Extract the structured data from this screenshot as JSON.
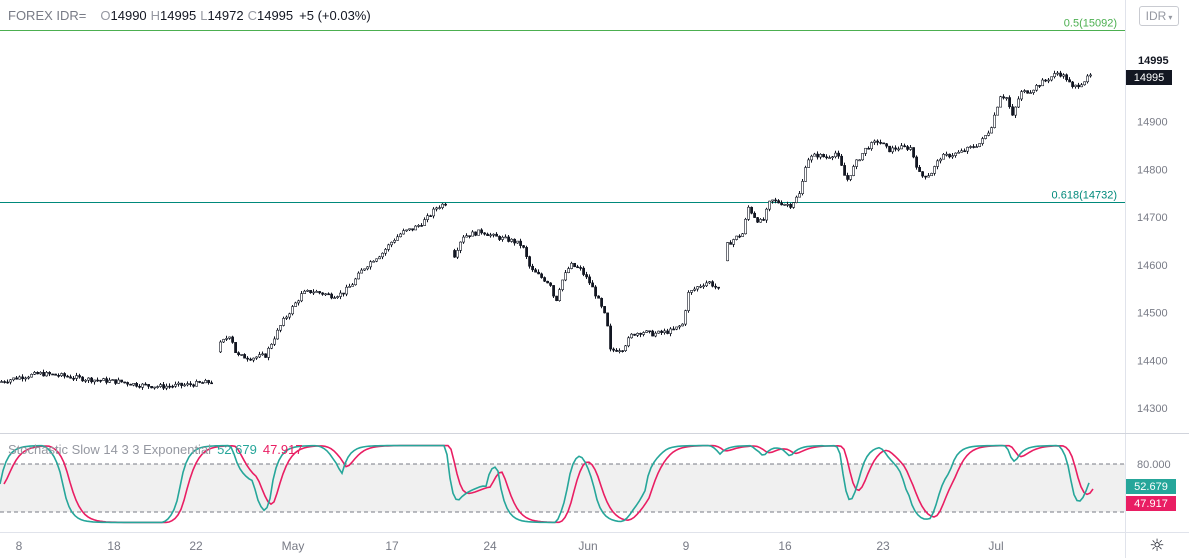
{
  "header": {
    "symbol": "FOREX IDR=",
    "open_label": "O",
    "open": "14990",
    "high_label": "H",
    "high": "14995",
    "low_label": "L",
    "low": "14972",
    "close_label": "C",
    "close": "14995",
    "change": "+5 (+0.03%)"
  },
  "currency_button": {
    "label": "IDR",
    "icon": "chevron-down-icon"
  },
  "price_badges": {
    "last_high": "14995",
    "last": "14995"
  },
  "fib_levels": [
    {
      "label": "0.5(15092)",
      "value": 15092,
      "color": "#4caf50"
    },
    {
      "label": "0.618(14732)",
      "value": 14732,
      "color": "#00897b"
    }
  ],
  "stochastic": {
    "title": "Stochastic Slow 14 3 3 Exponential",
    "k_value": "52.679",
    "d_value": "47.917",
    "k_color": "#26a69a",
    "d_color": "#e91e63",
    "upper_band": 80,
    "lower_band": 20,
    "upper_label": "80.000"
  },
  "settings_icon": "gear-icon",
  "chart_data": {
    "type": "candlestick",
    "y_axis_ticks": [
      14300,
      14400,
      14500,
      14600,
      14700,
      14800,
      14900
    ],
    "x_axis_labels": [
      "8",
      "18",
      "22",
      "May",
      "17",
      "24",
      "Jun",
      "9",
      "16",
      "23",
      "Jul"
    ],
    "waypoints": [
      [
        0,
        14355
      ],
      [
        20,
        14365
      ],
      [
        40,
        14372
      ],
      [
        60,
        14368
      ],
      [
        80,
        14362
      ],
      [
        100,
        14358
      ],
      [
        120,
        14355
      ],
      [
        140,
        14348
      ],
      [
        160,
        14345
      ],
      [
        185,
        14348
      ],
      [
        212,
        14355
      ],
      [
        218,
        14430
      ],
      [
        230,
        14455
      ],
      [
        236,
        14410
      ],
      [
        250,
        14405
      ],
      [
        265,
        14410
      ],
      [
        272,
        14440
      ],
      [
        282,
        14480
      ],
      [
        292,
        14510
      ],
      [
        302,
        14540
      ],
      [
        312,
        14545
      ],
      [
        322,
        14540
      ],
      [
        332,
        14535
      ],
      [
        342,
        14540
      ],
      [
        352,
        14560
      ],
      [
        362,
        14590
      ],
      [
        372,
        14610
      ],
      [
        382,
        14625
      ],
      [
        392,
        14650
      ],
      [
        402,
        14668
      ],
      [
        412,
        14675
      ],
      [
        420,
        14685
      ],
      [
        428,
        14700
      ],
      [
        436,
        14720
      ],
      [
        446,
        14730
      ],
      [
        452,
        14610
      ],
      [
        462,
        14660
      ],
      [
        472,
        14665
      ],
      [
        482,
        14670
      ],
      [
        492,
        14660
      ],
      [
        502,
        14655
      ],
      [
        512,
        14650
      ],
      [
        522,
        14640
      ],
      [
        530,
        14590
      ],
      [
        540,
        14575
      ],
      [
        550,
        14560
      ],
      [
        555,
        14520
      ],
      [
        560,
        14560
      ],
      [
        570,
        14600
      ],
      [
        580,
        14590
      ],
      [
        590,
        14560
      ],
      [
        597,
        14530
      ],
      [
        606,
        14485
      ],
      [
        610,
        14420
      ],
      [
        622,
        14425
      ],
      [
        632,
        14455
      ],
      [
        642,
        14460
      ],
      [
        652,
        14455
      ],
      [
        662,
        14458
      ],
      [
        672,
        14462
      ],
      [
        682,
        14475
      ],
      [
        688,
        14540
      ],
      [
        698,
        14555
      ],
      [
        708,
        14565
      ],
      [
        720,
        14545
      ],
      [
        726,
        14640
      ],
      [
        734,
        14655
      ],
      [
        742,
        14665
      ],
      [
        748,
        14720
      ],
      [
        756,
        14695
      ],
      [
        762,
        14688
      ],
      [
        770,
        14735
      ],
      [
        780,
        14730
      ],
      [
        790,
        14725
      ],
      [
        800,
        14750
      ],
      [
        806,
        14820
      ],
      [
        816,
        14830
      ],
      [
        826,
        14825
      ],
      [
        836,
        14835
      ],
      [
        846,
        14775
      ],
      [
        856,
        14815
      ],
      [
        866,
        14845
      ],
      [
        878,
        14860
      ],
      [
        888,
        14840
      ],
      [
        898,
        14845
      ],
      [
        910,
        14845
      ],
      [
        920,
        14785
      ],
      [
        930,
        14790
      ],
      [
        940,
        14825
      ],
      [
        950,
        14830
      ],
      [
        960,
        14835
      ],
      [
        970,
        14845
      ],
      [
        980,
        14855
      ],
      [
        990,
        14885
      ],
      [
        1000,
        14955
      ],
      [
        1006,
        14950
      ],
      [
        1012,
        14910
      ],
      [
        1020,
        14960
      ],
      [
        1030,
        14965
      ],
      [
        1040,
        14980
      ],
      [
        1048,
        14990
      ],
      [
        1058,
        15003
      ],
      [
        1066,
        14990
      ],
      [
        1072,
        14970
      ],
      [
        1080,
        14980
      ],
      [
        1090,
        14995
      ]
    ]
  }
}
